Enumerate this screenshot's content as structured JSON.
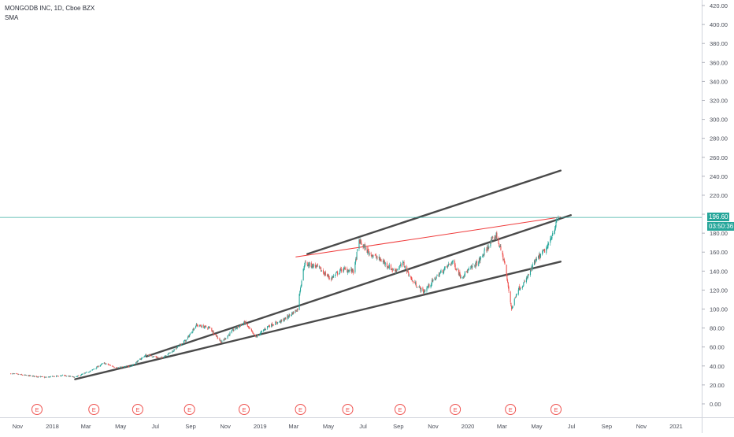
{
  "legend": {
    "symbol_line": "MONGODB INC, 1D, Cboe BZX",
    "indicator": "SMA"
  },
  "last_price": {
    "label": "196.60",
    "value": 196.6,
    "color": "#26a69a"
  },
  "countdown": {
    "label": "03:50:36",
    "color": "#26a69a"
  },
  "colors": {
    "up": "#26a69a",
    "down": "#ef5350",
    "trendline": "#4a4a4a",
    "red_line": "#ef3b3b",
    "earnings": "#ef5350"
  },
  "earnings_marker_label": "E",
  "chart_data": {
    "type": "candlestick",
    "x_tick_labels": [
      "Nov",
      "2018",
      "Mar",
      "May",
      "Jul",
      "Sep",
      "Nov",
      "2019",
      "Mar",
      "May",
      "Jul",
      "Sep",
      "Nov",
      "2020",
      "Mar",
      "May",
      "Jul",
      "Sep",
      "Nov",
      "2021"
    ],
    "x_tick_dates": [
      "2017-11-01",
      "2018-01-01",
      "2018-03-01",
      "2018-05-01",
      "2018-07-01",
      "2018-09-01",
      "2018-11-01",
      "2019-01-01",
      "2019-03-01",
      "2019-05-01",
      "2019-07-01",
      "2019-09-01",
      "2019-11-01",
      "2020-01-01",
      "2020-03-01",
      "2020-05-01",
      "2020-07-01",
      "2020-09-01",
      "2020-11-01",
      "2021-01-01"
    ],
    "y_tick_labels": [
      "0.00",
      "20.00",
      "40.00",
      "60.00",
      "80.00",
      "100.00",
      "120.00",
      "140.00",
      "160.00",
      "180.00",
      "200.00",
      "220.00",
      "240.00",
      "260.00",
      "280.00",
      "300.00",
      "320.00",
      "340.00",
      "360.00",
      "380.00",
      "400.00",
      "420.00"
    ],
    "ylim": [
      -10,
      430
    ],
    "xlim": [
      "2017-10-01",
      "2021-02-15"
    ],
    "price_path": [
      [
        "2017-10-20",
        32
      ],
      [
        "2017-11-15",
        30
      ],
      [
        "2017-12-20",
        28
      ],
      [
        "2018-01-20",
        30
      ],
      [
        "2018-02-10",
        28
      ],
      [
        "2018-03-10",
        35
      ],
      [
        "2018-04-01",
        43
      ],
      [
        "2018-04-25",
        38
      ],
      [
        "2018-05-20",
        40
      ],
      [
        "2018-06-15",
        52
      ],
      [
        "2018-07-10",
        48
      ],
      [
        "2018-08-01",
        56
      ],
      [
        "2018-08-25",
        68
      ],
      [
        "2018-09-10",
        83
      ],
      [
        "2018-10-05",
        80
      ],
      [
        "2018-10-25",
        65
      ],
      [
        "2018-11-15",
        78
      ],
      [
        "2018-12-05",
        86
      ],
      [
        "2018-12-24",
        70
      ],
      [
        "2019-01-15",
        82
      ],
      [
        "2019-02-10",
        88
      ],
      [
        "2019-03-08",
        100
      ],
      [
        "2019-03-12",
        120
      ],
      [
        "2019-03-20",
        148
      ],
      [
        "2019-04-10",
        145
      ],
      [
        "2019-05-05",
        132
      ],
      [
        "2019-05-25",
        142
      ],
      [
        "2019-06-15",
        140
      ],
      [
        "2019-06-24",
        172
      ],
      [
        "2019-07-10",
        160
      ],
      [
        "2019-08-05",
        150
      ],
      [
        "2019-08-25",
        140
      ],
      [
        "2019-09-10",
        148
      ],
      [
        "2019-09-25",
        130
      ],
      [
        "2019-10-15",
        118
      ],
      [
        "2019-11-10",
        136
      ],
      [
        "2019-12-05",
        150
      ],
      [
        "2019-12-20",
        134
      ],
      [
        "2020-01-20",
        150
      ],
      [
        "2020-02-10",
        170
      ],
      [
        "2020-02-20",
        178
      ],
      [
        "2020-03-05",
        150
      ],
      [
        "2020-03-18",
        100
      ],
      [
        "2020-03-28",
        120
      ],
      [
        "2020-04-10",
        128
      ],
      [
        "2020-04-28",
        150
      ],
      [
        "2020-05-20",
        165
      ],
      [
        "2020-06-08",
        196.6
      ]
    ],
    "earnings_dates": [
      "2017-12-05",
      "2018-03-15",
      "2018-05-31",
      "2018-08-30",
      "2018-12-04",
      "2019-03-13",
      "2019-06-04",
      "2019-09-04",
      "2019-12-10",
      "2020-03-16",
      "2020-06-04"
    ],
    "trendlines": [
      {
        "name": "upper-channel-line",
        "color": "trendline",
        "points": [
          [
            "2019-03-25",
            158
          ],
          [
            "2020-06-12",
            246
          ]
        ]
      },
      {
        "name": "middle-channel-line",
        "color": "trendline",
        "points": [
          [
            "2018-06-15",
            50
          ],
          [
            "2020-06-30",
            199
          ]
        ]
      },
      {
        "name": "lower-channel-line",
        "color": "trendline",
        "points": [
          [
            "2018-02-10",
            26
          ],
          [
            "2020-06-12",
            150
          ]
        ]
      },
      {
        "name": "red-resistance-line",
        "color": "red_line",
        "points": [
          [
            "2019-03-05",
            155
          ],
          [
            "2020-06-12",
            197
          ]
        ]
      }
    ],
    "price_line": {
      "value": 196.6,
      "color": "#26a69a"
    }
  }
}
